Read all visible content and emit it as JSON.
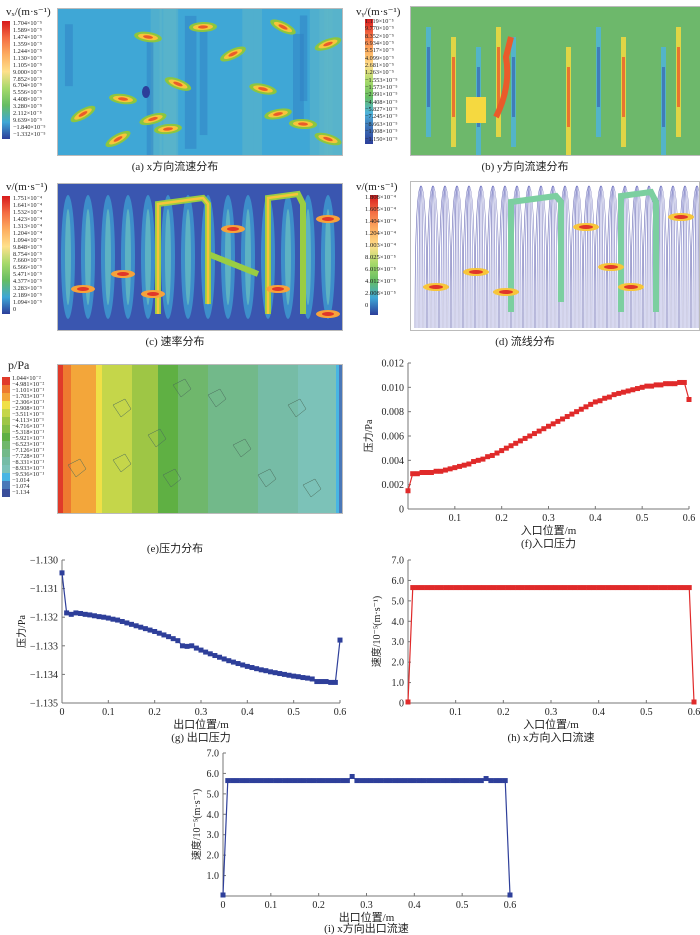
{
  "figure": {
    "panels": [
      {
        "id": "a",
        "caption": "(a) x方向流速分布",
        "legend_title": "vₓ/(m·s⁻¹)",
        "legend_labels": [
          "1.704×10⁻⁵",
          "1.589×10⁻⁵",
          "1.474×10⁻⁵",
          "1.359×10⁻⁵",
          "1.244×10⁻⁵",
          "1.130×10⁻⁵",
          "1.105×10⁻⁵",
          "9.000×10⁻⁵",
          "7.852×10⁻⁵",
          "6.704×10⁻⁵",
          "5.556×10⁻⁵",
          "4.408×10⁻⁵",
          "3.280×10⁻⁵",
          "2.112×10⁻⁵",
          "9.639×10⁻⁵",
          "−1.840×10⁻⁵",
          "−1.332×10⁻⁵"
        ],
        "background": "#3fa7d6"
      },
      {
        "id": "b",
        "caption": "(b) y方向流速分布",
        "legend_title": "vᵧ/(m·s⁻¹)",
        "legend_labels": [
          "1.119×10⁻⁵",
          "9.770×10⁻⁵",
          "8.352×10⁻⁵",
          "6.934×10⁻⁵",
          "5.517×10⁻⁵",
          "4.099×10⁻⁵",
          "2.681×10⁻⁵",
          "1.263×10⁻⁵",
          "−1.553×10⁻⁵",
          "−1.573×10⁻⁵",
          "−2.991×10⁻⁵",
          "−4.408×10⁻⁵",
          "−5.827×10⁻⁵",
          "−7.245×10⁻⁵",
          "−8.663×10⁻⁵",
          "−1.008×10⁻⁵",
          "−1.150×10⁻⁵"
        ],
        "background": "#6db86b"
      },
      {
        "id": "c",
        "caption": "(c) 速率分布",
        "legend_title": "v/(m·s⁻¹)",
        "legend_labels": [
          "1.751×10⁻⁴",
          "1.641×10⁻⁴",
          "1.532×10⁻⁴",
          "1.423×10⁻⁴",
          "1.313×10⁻⁴",
          "1.204×10⁻⁴",
          "1.094×10⁻⁴",
          "9.848×10⁻⁵",
          "8.754×10⁻⁵",
          "7.660×10⁻⁵",
          "6.566×10⁻⁵",
          "5.471×10⁻⁵",
          "4.377×10⁻⁵",
          "3.283×10⁻⁵",
          "2.189×10⁻⁵",
          "1.094×10⁻⁵",
          "0"
        ],
        "background": "#3a56b0"
      },
      {
        "id": "d",
        "caption": "(d) 流线分布",
        "legend_title": "v/(m·s⁻¹)",
        "legend_labels": [
          "1.808×10⁻⁴",
          "1.605×10⁻⁴",
          "1.404×10⁻⁴",
          "1.204×10⁻⁴",
          "1.003×10⁻⁴",
          "8.025×10⁻⁵",
          "6.019×10⁻⁵",
          "4.012×10⁻⁵",
          "2.008×10⁻⁵",
          "0"
        ],
        "background": "#ffffff"
      },
      {
        "id": "e",
        "caption": "(e)压力分布",
        "legend_title": "p/Pa",
        "legend_labels": [
          "1.044×10⁻²",
          "−4.981×10⁻²",
          "−1.101×10⁻¹",
          "−1.703×10⁻¹",
          "−2.306×10⁻¹",
          "−2.908×10⁻¹",
          "−3.511×10⁻¹",
          "−4.113×10⁻¹",
          "−4.716×10⁻¹",
          "−5.318×10⁻¹",
          "−5.921×10⁻¹",
          "−6.523×10⁻¹",
          "−7.126×10⁻¹",
          "−7.728×10⁻¹",
          "−8.331×10⁻¹",
          "−8.933×10⁻¹",
          "−9.536×10⁻¹",
          "−1.014",
          "−1.074",
          "−1.134"
        ],
        "bands": [
          "#e03a2a",
          "#ee7a30",
          "#f3a63a",
          "#f0e046",
          "#c5d64a",
          "#9ec645",
          "#82bd45",
          "#5fb043",
          "#6fb76c",
          "#72b98a",
          "#76bca6",
          "#7cc2b8",
          "#48b5e3",
          "#4a78b8",
          "#3a4e9a"
        ]
      }
    ]
  },
  "chart_data": [
    {
      "id": "f",
      "type": "line",
      "caption": "(f)入口压力",
      "xlabel": "入口位置/m",
      "ylabel": "压力/Pa",
      "xlim": [
        0,
        0.6
      ],
      "ylim": [
        0,
        0.012
      ],
      "xticks": [
        "0.1",
        "0.2",
        "0.3",
        "0.4",
        "0.5",
        "0.6"
      ],
      "yticks": [
        "0",
        "0.002",
        "0.004",
        "0.006",
        "0.008",
        "0.010",
        "0.012"
      ],
      "color": "#e02a2a",
      "x": [
        0,
        0.01,
        0.02,
        0.03,
        0.04,
        0.05,
        0.06,
        0.07,
        0.08,
        0.09,
        0.1,
        0.11,
        0.12,
        0.13,
        0.14,
        0.15,
        0.16,
        0.17,
        0.18,
        0.19,
        0.2,
        0.21,
        0.22,
        0.23,
        0.24,
        0.25,
        0.26,
        0.27,
        0.28,
        0.29,
        0.3,
        0.31,
        0.32,
        0.33,
        0.34,
        0.35,
        0.36,
        0.37,
        0.38,
        0.39,
        0.4,
        0.41,
        0.42,
        0.43,
        0.44,
        0.45,
        0.46,
        0.47,
        0.48,
        0.49,
        0.5,
        0.51,
        0.52,
        0.53,
        0.54,
        0.55,
        0.56,
        0.57,
        0.58,
        0.59,
        0.6
      ],
      "y": [
        0.0015,
        0.0029,
        0.0029,
        0.003,
        0.003,
        0.003,
        0.0031,
        0.0031,
        0.0032,
        0.0033,
        0.0034,
        0.0035,
        0.0036,
        0.0037,
        0.0039,
        0.004,
        0.0041,
        0.0043,
        0.0044,
        0.0046,
        0.0048,
        0.005,
        0.0052,
        0.0054,
        0.0056,
        0.0058,
        0.006,
        0.0062,
        0.0064,
        0.0066,
        0.0068,
        0.007,
        0.0072,
        0.0074,
        0.0076,
        0.0078,
        0.008,
        0.0082,
        0.0084,
        0.0086,
        0.0088,
        0.0089,
        0.0091,
        0.0092,
        0.0094,
        0.0095,
        0.0096,
        0.0097,
        0.0098,
        0.0099,
        0.01,
        0.0101,
        0.0101,
        0.0102,
        0.0102,
        0.0103,
        0.0103,
        0.0103,
        0.0104,
        0.0104,
        0.009
      ]
    },
    {
      "id": "g",
      "type": "line",
      "caption": "(g) 出口压力",
      "xlabel": "出口位置/m",
      "ylabel": "压力/Pa",
      "xlim": [
        0,
        0.6
      ],
      "ylim": [
        -1.135,
        -1.13
      ],
      "xticks": [
        "0",
        "0.1",
        "0.2",
        "0.3",
        "0.4",
        "0.5",
        "0.6"
      ],
      "yticks": [
        "-1.135",
        "-1.134",
        "-1.133",
        "-1.132",
        "-1.131",
        "-1.130"
      ],
      "color": "#2e3f9a",
      "x": [
        0,
        0.01,
        0.02,
        0.03,
        0.04,
        0.05,
        0.06,
        0.07,
        0.08,
        0.09,
        0.1,
        0.11,
        0.12,
        0.13,
        0.14,
        0.15,
        0.16,
        0.17,
        0.18,
        0.19,
        0.2,
        0.21,
        0.22,
        0.23,
        0.24,
        0.25,
        0.26,
        0.27,
        0.28,
        0.29,
        0.3,
        0.31,
        0.32,
        0.33,
        0.34,
        0.35,
        0.36,
        0.37,
        0.38,
        0.39,
        0.4,
        0.41,
        0.42,
        0.43,
        0.44,
        0.45,
        0.46,
        0.47,
        0.48,
        0.49,
        0.5,
        0.51,
        0.52,
        0.53,
        0.54,
        0.55,
        0.56,
        0.57,
        0.58,
        0.59,
        0.6
      ],
      "y": [
        -1.13045,
        -1.13185,
        -1.1319,
        -1.13185,
        -1.13187,
        -1.1319,
        -1.13192,
        -1.13195,
        -1.13198,
        -1.132,
        -1.13203,
        -1.13207,
        -1.1321,
        -1.13215,
        -1.1322,
        -1.13225,
        -1.1323,
        -1.13235,
        -1.1324,
        -1.13245,
        -1.1325,
        -1.13256,
        -1.13262,
        -1.13268,
        -1.13275,
        -1.13282,
        -1.133,
        -1.13302,
        -1.133,
        -1.13308,
        -1.13315,
        -1.13322,
        -1.13328,
        -1.13334,
        -1.1334,
        -1.13346,
        -1.13352,
        -1.13357,
        -1.13362,
        -1.13367,
        -1.13372,
        -1.13376,
        -1.1338,
        -1.13384,
        -1.13387,
        -1.13391,
        -1.13394,
        -1.13397,
        -1.134,
        -1.13403,
        -1.13406,
        -1.13408,
        -1.13411,
        -1.13413,
        -1.13416,
        -1.13425,
        -1.13425,
        -1.13425,
        -1.13428,
        -1.13428,
        -1.1328
      ]
    },
    {
      "id": "h",
      "type": "line",
      "caption": "(h) x方向入口流速",
      "xlabel": "入口位置/m",
      "ylabel": "速度/10⁻⁵(m·s⁻¹)",
      "xlim": [
        0,
        0.6
      ],
      "ylim": [
        0,
        7.0
      ],
      "xticks": [
        "0.1",
        "0.2",
        "0.3",
        "0.4",
        "0.5",
        "0.6"
      ],
      "yticks": [
        "0",
        "1.0",
        "2.0",
        "3.0",
        "4.0",
        "5.0",
        "6.0",
        "7.0"
      ],
      "color": "#e02a2a",
      "x": [
        0,
        0.01,
        0.02,
        0.03,
        0.04,
        0.05,
        0.06,
        0.07,
        0.08,
        0.09,
        0.1,
        0.11,
        0.12,
        0.13,
        0.14,
        0.15,
        0.16,
        0.17,
        0.18,
        0.19,
        0.2,
        0.21,
        0.22,
        0.23,
        0.24,
        0.25,
        0.26,
        0.27,
        0.28,
        0.29,
        0.3,
        0.31,
        0.32,
        0.33,
        0.34,
        0.35,
        0.36,
        0.37,
        0.38,
        0.39,
        0.4,
        0.41,
        0.42,
        0.43,
        0.44,
        0.45,
        0.46,
        0.47,
        0.48,
        0.49,
        0.5,
        0.51,
        0.52,
        0.53,
        0.54,
        0.55,
        0.56,
        0.57,
        0.58,
        0.59,
        0.6
      ],
      "y": [
        0.05,
        5.65,
        5.65,
        5.65,
        5.65,
        5.65,
        5.65,
        5.65,
        5.65,
        5.65,
        5.65,
        5.65,
        5.65,
        5.65,
        5.65,
        5.65,
        5.65,
        5.65,
        5.65,
        5.65,
        5.65,
        5.65,
        5.65,
        5.65,
        5.65,
        5.65,
        5.65,
        5.65,
        5.65,
        5.65,
        5.65,
        5.65,
        5.65,
        5.65,
        5.65,
        5.65,
        5.65,
        5.65,
        5.65,
        5.65,
        5.65,
        5.65,
        5.65,
        5.65,
        5.65,
        5.65,
        5.65,
        5.65,
        5.65,
        5.65,
        5.65,
        5.65,
        5.65,
        5.65,
        5.65,
        5.65,
        5.65,
        5.65,
        5.65,
        5.65,
        0.05
      ]
    },
    {
      "id": "i",
      "type": "line",
      "caption": "(i) x方向出口流速",
      "xlabel": "出口位置/m",
      "ylabel": "速度/10⁻⁵(m·s⁻¹)",
      "xlim": [
        0,
        0.6
      ],
      "ylim": [
        0,
        7.0
      ],
      "xticks": [
        "0",
        "0.1",
        "0.2",
        "0.3",
        "0.4",
        "0.5",
        "0.6"
      ],
      "yticks": [
        "1.0",
        "2.0",
        "3.0",
        "4.0",
        "5.0",
        "6.0",
        "7.0"
      ],
      "color": "#2e3f9a",
      "x": [
        0,
        0.01,
        0.02,
        0.03,
        0.04,
        0.05,
        0.06,
        0.07,
        0.08,
        0.09,
        0.1,
        0.11,
        0.12,
        0.13,
        0.14,
        0.15,
        0.16,
        0.17,
        0.18,
        0.19,
        0.2,
        0.21,
        0.22,
        0.23,
        0.24,
        0.25,
        0.26,
        0.27,
        0.28,
        0.29,
        0.3,
        0.31,
        0.32,
        0.33,
        0.34,
        0.35,
        0.36,
        0.37,
        0.38,
        0.39,
        0.4,
        0.41,
        0.42,
        0.43,
        0.44,
        0.45,
        0.46,
        0.47,
        0.48,
        0.49,
        0.5,
        0.51,
        0.52,
        0.53,
        0.54,
        0.55,
        0.56,
        0.57,
        0.58,
        0.59,
        0.6
      ],
      "y": [
        0.05,
        5.65,
        5.65,
        5.65,
        5.65,
        5.65,
        5.65,
        5.65,
        5.65,
        5.65,
        5.65,
        5.65,
        5.65,
        5.65,
        5.65,
        5.65,
        5.65,
        5.65,
        5.65,
        5.65,
        5.65,
        5.65,
        5.65,
        5.65,
        5.65,
        5.65,
        5.65,
        5.85,
        5.65,
        5.65,
        5.65,
        5.65,
        5.65,
        5.65,
        5.65,
        5.65,
        5.65,
        5.65,
        5.65,
        5.65,
        5.65,
        5.65,
        5.65,
        5.65,
        5.65,
        5.65,
        5.65,
        5.65,
        5.65,
        5.65,
        5.65,
        5.65,
        5.65,
        5.65,
        5.65,
        5.75,
        5.65,
        5.65,
        5.65,
        5.65,
        0.05
      ]
    }
  ]
}
